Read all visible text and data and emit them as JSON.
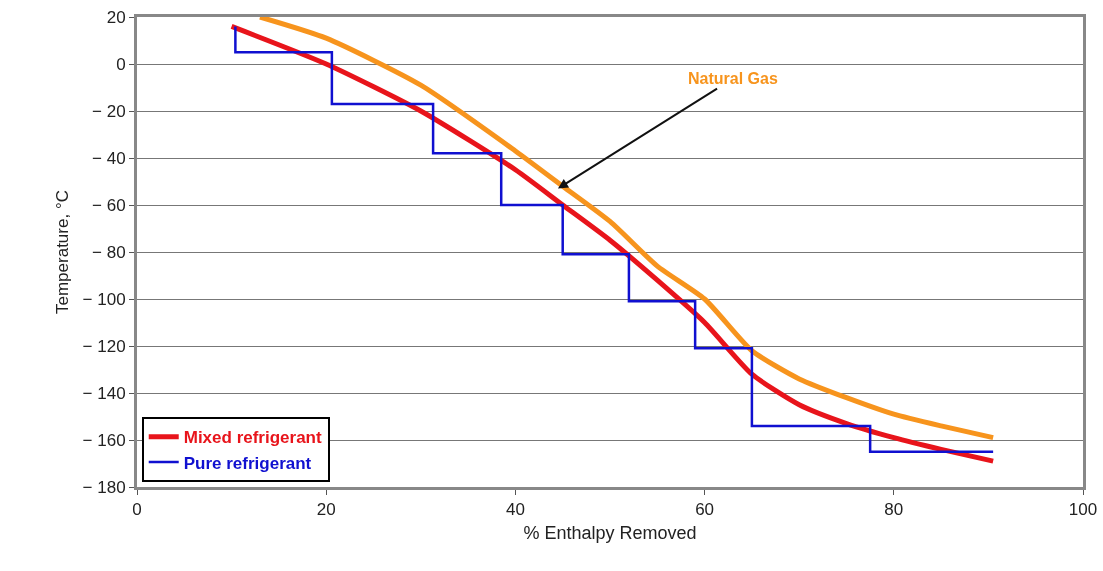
{
  "chart_data": {
    "type": "line",
    "xlabel": "% Enthalpy Removed",
    "ylabel": "Temperature, °C",
    "xlim": [
      0,
      100
    ],
    "xticks": [
      0,
      20,
      40,
      60,
      80,
      100
    ],
    "ylim": [
      -180,
      20
    ],
    "yticks": [
      20,
      0,
      -20,
      -40,
      -60,
      -80,
      -100,
      -120,
      -140,
      -160,
      -180
    ],
    "grid": "y",
    "legend": "bottom left",
    "marker": "none",
    "line_style": "solid",
    "series": [
      {
        "color": "#f7941d",
        "x": [
          13,
          20,
          30,
          40,
          45,
          50,
          55,
          60,
          65,
          70,
          75,
          80,
          85,
          90.5
        ],
        "values": [
          20,
          11,
          -9,
          -37,
          -52,
          -67,
          -86,
          -100,
          -122,
          -134,
          -142,
          -149,
          -154,
          -159
        ]
      },
      {
        "name": "Mixed refrigerant",
        "color": "#e8141b",
        "x": [
          10,
          20,
          30,
          40,
          45,
          50,
          55,
          60,
          65,
          70,
          75,
          80,
          85,
          90.5
        ],
        "values": [
          16,
          0,
          -20,
          -45,
          -60,
          -75,
          -92,
          -110,
          -132,
          -145,
          -153,
          -159,
          -164,
          -169
        ]
      },
      {
        "name": "Pure refrigerant",
        "type": "step",
        "color": "#1010d0",
        "x": [
          10.4,
          20.6,
          31.3,
          38.5,
          45,
          52,
          59,
          65,
          77.5,
          90.5
        ],
        "values": [
          16,
          5,
          -17,
          -38,
          -60,
          -81,
          -101,
          -121,
          -154,
          -165
        ]
      }
    ],
    "annotations": [
      {
        "text": "Natural Gas",
        "x": 44.5,
        "y": -53
      }
    ]
  }
}
